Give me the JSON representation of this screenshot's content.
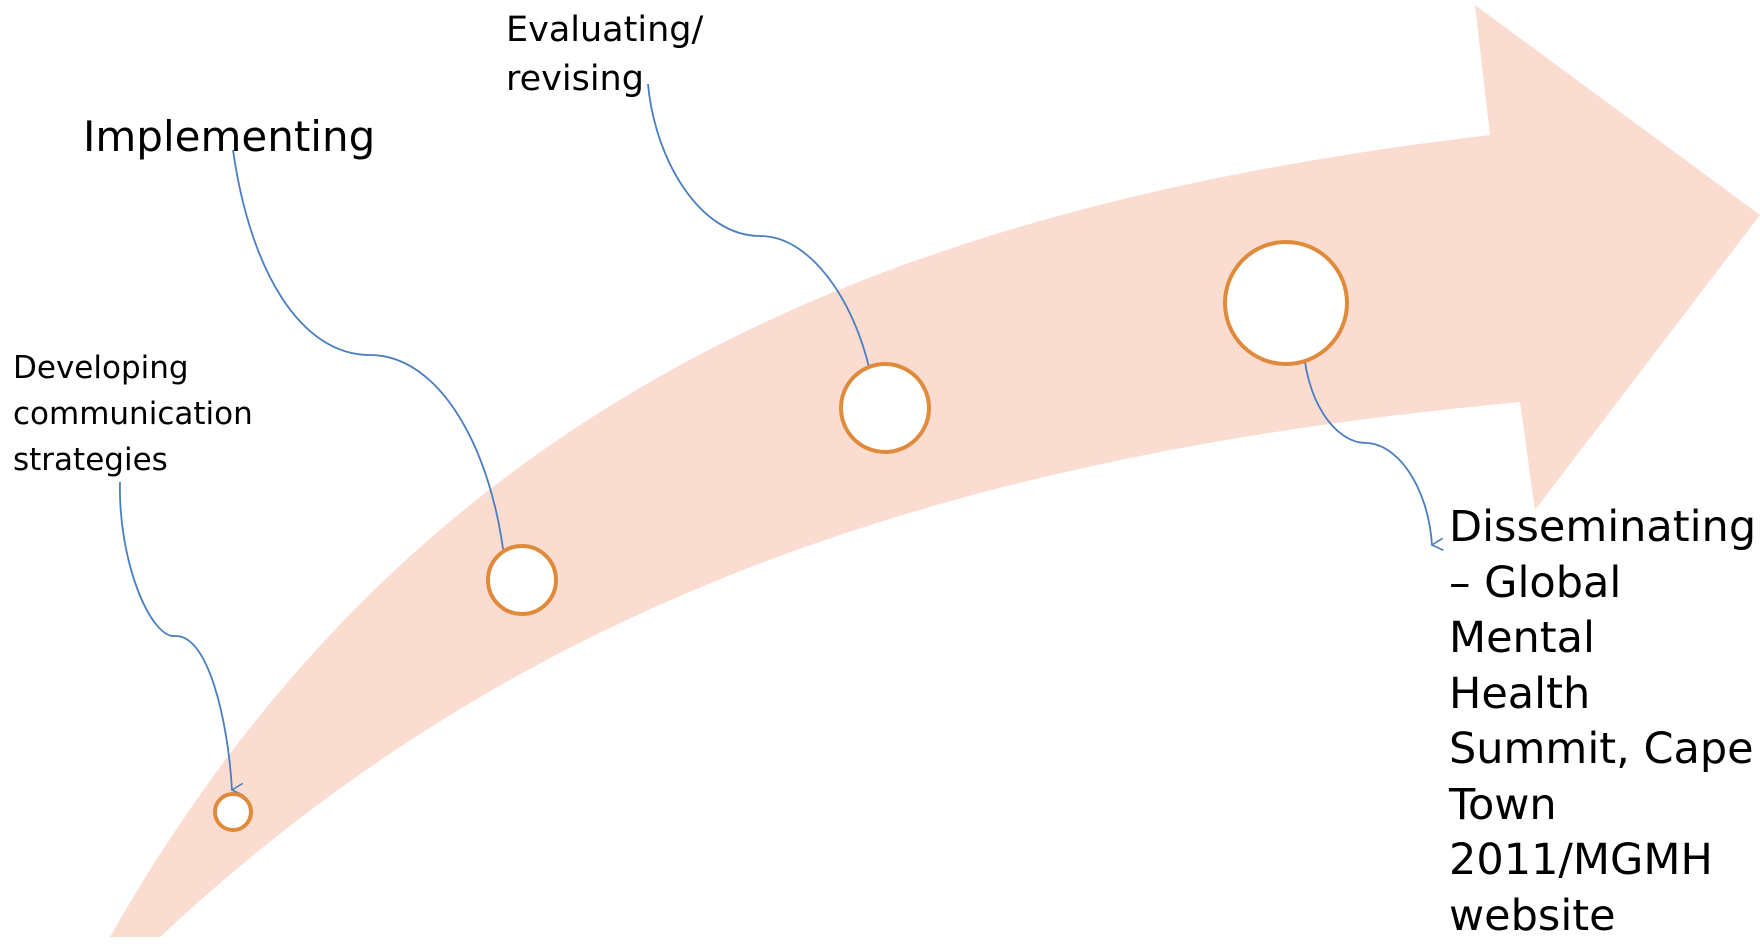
{
  "colors": {
    "arrow_fill": "#fbdcd1",
    "circle_stroke": "#e08a3c",
    "connector": "#4a7ebf"
  },
  "stages": [
    {
      "id": "developing",
      "label": "Developing\ncommunication\nstrategies"
    },
    {
      "id": "implementing",
      "label": "Implementing"
    },
    {
      "id": "evaluating",
      "label": "Evaluating/\nrevising"
    },
    {
      "id": "disseminating",
      "label": "Disseminating\n– Global\nMental\nHealth\nSummit, Cape\nTown\n2011/MGMH\nwebsite"
    }
  ]
}
